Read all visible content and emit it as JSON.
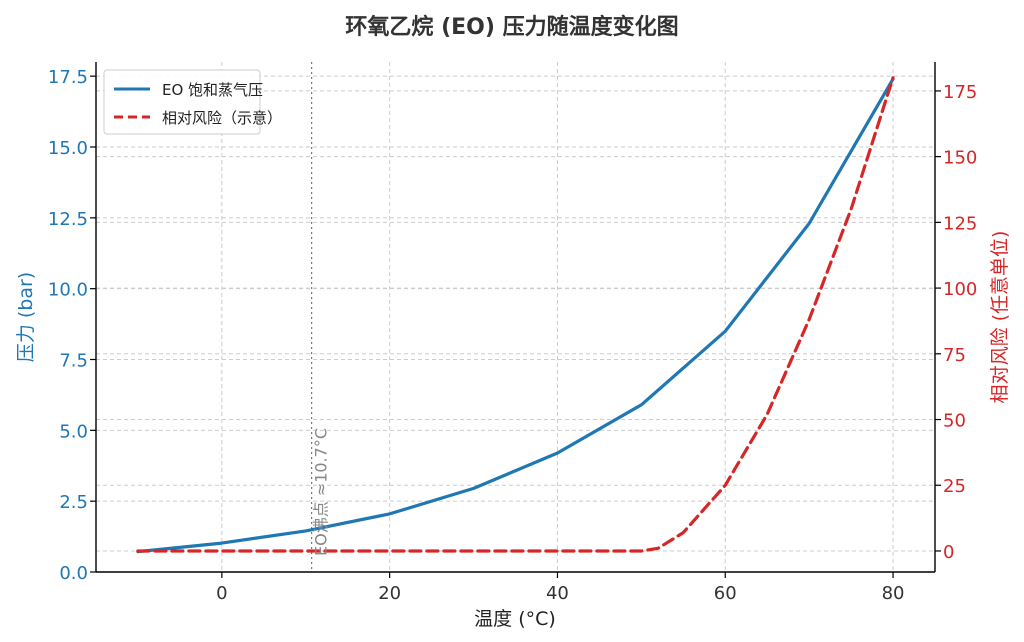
{
  "chart_data": {
    "type": "line",
    "title": "环氧乙烷 (EO) 压力随温度变化图",
    "xlabel": "温度 (°C)",
    "ylabel_left": "压力 (bar)",
    "ylabel_right": "相对风险 (任意单位)",
    "xlim": [
      -15,
      85
    ],
    "ylim_left": [
      0,
      18.0
    ],
    "ylim_right": [
      -8,
      186
    ],
    "x_ticks": [
      0,
      20,
      40,
      60,
      80
    ],
    "y_left_ticks": [
      "0.0",
      "2.5",
      "5.0",
      "7.5",
      "10.0",
      "12.5",
      "15.0",
      "17.5"
    ],
    "y_right_ticks": [
      "0",
      "25",
      "50",
      "75",
      "100",
      "125",
      "150",
      "175"
    ],
    "grid": true,
    "legend_position": "top-left",
    "annotation": {
      "x": 10.7,
      "text": "EO沸点 ≈10.7°C"
    },
    "series": [
      {
        "name": "EO 饱和蒸气压",
        "axis": "left",
        "style": "solid",
        "color": "#1f77b4",
        "x": [
          -10,
          0,
          10,
          20,
          30,
          40,
          50,
          60,
          70,
          80
        ],
        "y": [
          0.72,
          1.02,
          1.45,
          2.05,
          2.95,
          4.2,
          5.9,
          8.5,
          12.3,
          17.4
        ]
      },
      {
        "name": "相对风险（示意）",
        "axis": "right",
        "style": "dashed",
        "color": "#d62728",
        "x": [
          -10,
          0,
          10,
          20,
          30,
          40,
          50,
          52,
          55,
          60,
          65,
          70,
          75,
          80
        ],
        "y": [
          0,
          0,
          0,
          0,
          0,
          0,
          0,
          1,
          7,
          25,
          52,
          88,
          130,
          180
        ]
      }
    ]
  }
}
